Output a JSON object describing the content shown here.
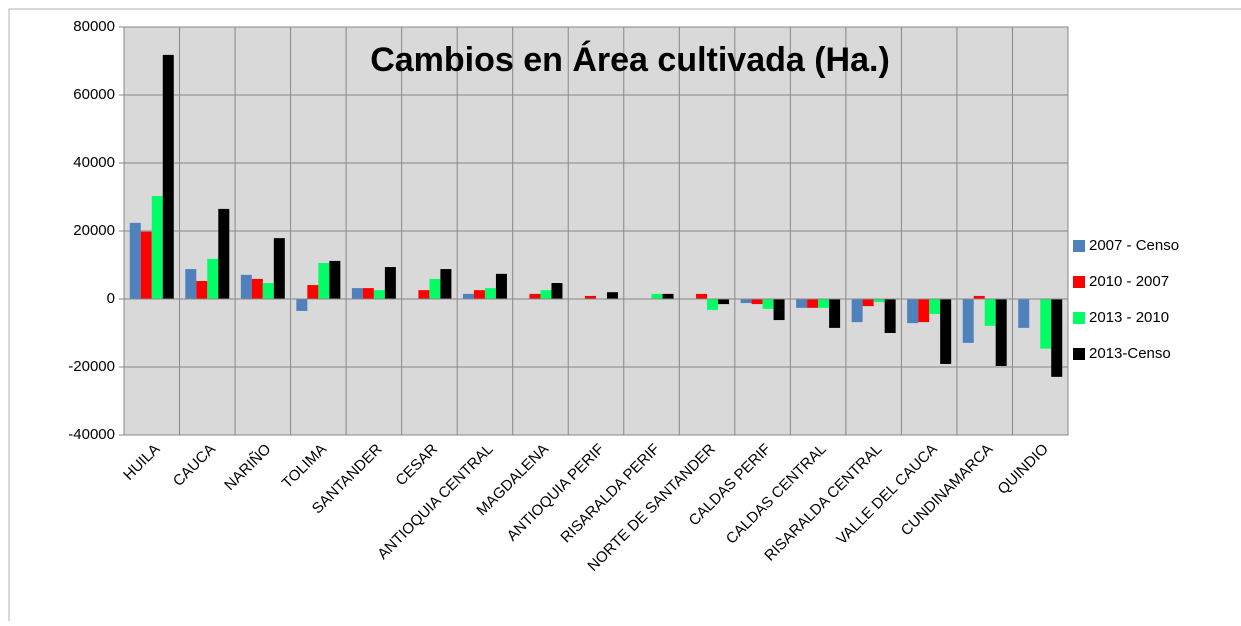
{
  "chart_data": {
    "type": "bar",
    "title": "Cambios en Área cultivada (Ha.)",
    "categories": [
      "HUILA",
      "CAUCA",
      "NARIÑO",
      "TOLIMA",
      "SANTANDER",
      "CESAR",
      "ANTIOQUIA CENTRAL",
      "MAGDALENA",
      "ANTIOQUIA PERIF",
      "RISARALDA PERIF",
      "NORTE DE SANTANDER",
      "CALDAS PERIF",
      "CALDAS CENTRAL",
      "RISARALDA CENTRAL",
      "VALLE DEL CAUCA",
      "CUNDINAMARCA",
      "QUINDIO"
    ],
    "series": [
      {
        "name": "2007 - Censo",
        "color": "#4f81bd",
        "values": [
          22400,
          8800,
          7100,
          -3500,
          3200,
          0,
          1500,
          0,
          0,
          0,
          0,
          -1200,
          -2600,
          -6800,
          -7100,
          -12900,
          -8500
        ]
      },
      {
        "name": "2010 - 2007",
        "color": "#ff0000",
        "values": [
          19800,
          5300,
          5900,
          4100,
          3200,
          2600,
          2600,
          1500,
          900,
          0,
          1500,
          -1500,
          -2600,
          -2100,
          -6800,
          900,
          0
        ]
      },
      {
        "name": "2013 - 2010",
        "color": "#00ff66",
        "values": [
          30300,
          11800,
          4700,
          10600,
          2600,
          5900,
          3200,
          2600,
          0,
          1500,
          -3200,
          -2900,
          -2600,
          -900,
          -4400,
          -7900,
          -14600
        ]
      },
      {
        "name": "2013-Censo",
        "color": "#000000",
        "values": [
          71800,
          26500,
          17900,
          11200,
          9400,
          8800,
          7400,
          4700,
          2000,
          1500,
          -1500,
          -6200,
          -8500,
          -10000,
          -19100,
          -19700,
          -22900
        ]
      }
    ],
    "ylim": [
      -40000,
      80000
    ],
    "yticks": [
      -40000,
      -20000,
      0,
      20000,
      40000,
      60000,
      80000
    ],
    "grid": true,
    "legend": "right"
  }
}
